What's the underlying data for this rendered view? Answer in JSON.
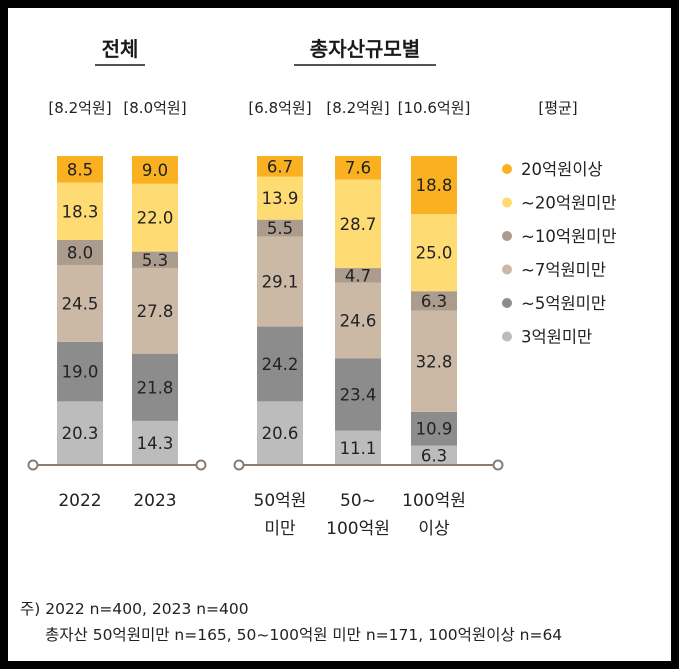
{
  "chart_data": {
    "type": "bar",
    "stacked": true,
    "groups": [
      {
        "title": "전체",
        "categories": [
          "2022",
          "2023"
        ]
      },
      {
        "title": "총자산규모별",
        "categories": [
          "50억원 미만",
          "50~ 100억원",
          "100억원 이상"
        ]
      }
    ],
    "categories": [
      "2022",
      "2023",
      "50억원 미만",
      "50~ 100억원",
      "100억원 이상"
    ],
    "category_lines": [
      [
        "2022"
      ],
      [
        "2023"
      ],
      [
        "50억원",
        "미만"
      ],
      [
        "50~",
        "100억원"
      ],
      [
        "100억원",
        "이상"
      ]
    ],
    "averages": [
      "[8.2억원]",
      "[8.0억원]",
      "[6.8억원]",
      "[8.2억원]",
      "[10.6억원]"
    ],
    "average_label": "[평균]",
    "series": [
      {
        "name": "3억원미만",
        "color": "#bcbcbc",
        "values": [
          20.3,
          14.3,
          20.6,
          11.1,
          6.3
        ]
      },
      {
        "name": "~5억원미만",
        "color": "#8c8c8c",
        "values": [
          19.0,
          21.8,
          24.2,
          23.4,
          10.9
        ]
      },
      {
        "name": "~7억원미만",
        "color": "#cbb9a6",
        "values": [
          24.5,
          27.8,
          29.1,
          24.6,
          32.8
        ]
      },
      {
        "name": "~10억원미만",
        "color": "#ab9c8d",
        "values": [
          8.0,
          5.3,
          5.5,
          4.7,
          6.3
        ]
      },
      {
        "name": "~20억원미만",
        "color": "#ffdb73",
        "values": [
          18.3,
          22.0,
          13.9,
          28.7,
          25.0
        ]
      },
      {
        "name": "20억원이상",
        "color": "#f9b121",
        "values": [
          8.5,
          9.0,
          6.7,
          7.6,
          18.8
        ]
      }
    ],
    "legend_order": [
      "20억원이상",
      "~20억원미만",
      "~10억원미만",
      "~7억원미만",
      "~5억원미만",
      "3억원미만"
    ],
    "legend_position": "right",
    "axis_color": "#8a7c70"
  },
  "notes": {
    "line1": "주) 2022 n=400, 2023 n=400",
    "line2": "총자산 50억원미만 n=165, 50~100억원 미만 n=171, 100억원이상 n=64"
  }
}
